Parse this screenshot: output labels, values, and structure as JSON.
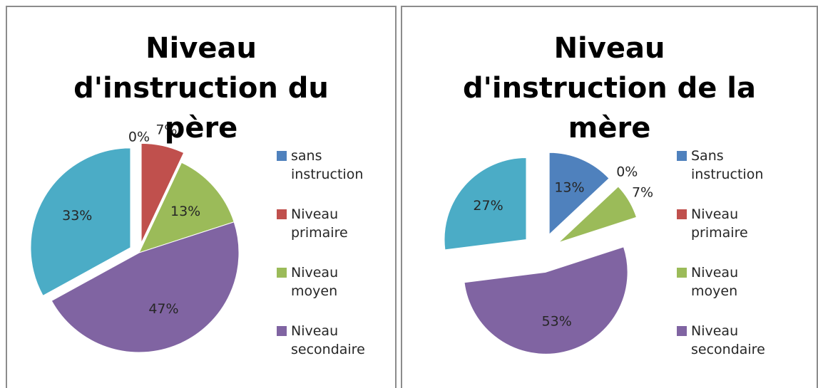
{
  "chart_data": [
    {
      "type": "pie",
      "title": "Niveau d'instruction du père",
      "categories": [
        "sans instruction",
        "Niveau primaire",
        "Niveau moyen",
        "Niveau secondaire",
        null
      ],
      "values": [
        0,
        7,
        13,
        47,
        33
      ],
      "value_labels": [
        "0%",
        "7%",
        "13%",
        "47%",
        "33%"
      ],
      "colors": [
        "#4f81bd",
        "#c0504d",
        "#9bbb59",
        "#8064a2",
        "#4bacc6"
      ],
      "explode": false
    },
    {
      "type": "pie",
      "title": "Niveau d'instruction de la mère",
      "categories": [
        "Sans instruction",
        "Niveau primaire",
        "Niveau moyen",
        "Niveau secondaire",
        null
      ],
      "values": [
        13,
        0,
        7,
        53,
        27
      ],
      "value_labels": [
        "13%",
        "0%",
        "7%",
        "53%",
        "27%"
      ],
      "colors": [
        "#4f81bd",
        "#c0504d",
        "#9bbb59",
        "#8064a2",
        "#4bacc6"
      ],
      "explode": true
    }
  ]
}
